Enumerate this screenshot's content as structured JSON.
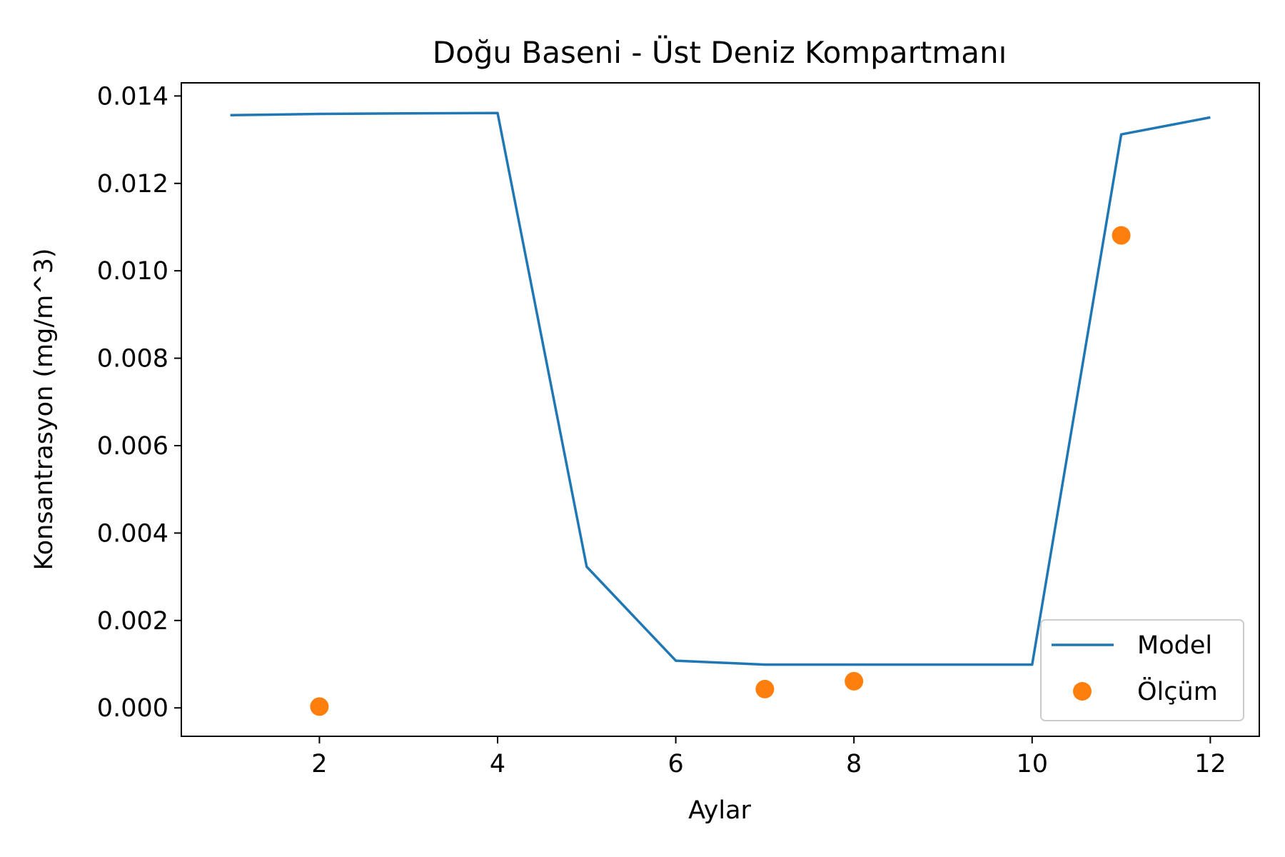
{
  "chart_data": {
    "type": "line",
    "title": "Doğu Baseni - Üst Deniz Kompartmanı",
    "xlabel": "Aylar",
    "ylabel": "Konsantrasyon (mg/m^3)",
    "xlim": [
      0.45,
      12.55
    ],
    "ylim": [
      -0.00065,
      0.0143
    ],
    "xticks": [
      2,
      4,
      6,
      8,
      10,
      12
    ],
    "xtick_labels": [
      "2",
      "4",
      "6",
      "8",
      "10",
      "12"
    ],
    "yticks": [
      0.0,
      0.002,
      0.004,
      0.006,
      0.008,
      0.01,
      0.012,
      0.014
    ],
    "ytick_labels": [
      "0.000",
      "0.002",
      "0.004",
      "0.006",
      "0.008",
      "0.010",
      "0.012",
      "0.014"
    ],
    "grid": false,
    "legend_position": "lower right",
    "series": [
      {
        "name": "Model",
        "kind": "line",
        "color": "#1f77b4",
        "x": [
          1,
          2,
          3,
          4,
          5,
          6,
          7,
          8,
          9,
          10,
          11,
          12
        ],
        "y": [
          0.01356,
          0.01359,
          0.0136,
          0.01361,
          0.00323,
          0.00108,
          0.00099,
          0.00099,
          0.00099,
          0.00099,
          0.01312,
          0.01351
        ]
      },
      {
        "name": "Ölçüm",
        "kind": "scatter",
        "color": "#ff7f0e",
        "x": [
          2,
          7,
          8,
          11
        ],
        "y": [
          3e-05,
          0.00043,
          0.00061,
          0.01081
        ]
      }
    ]
  }
}
